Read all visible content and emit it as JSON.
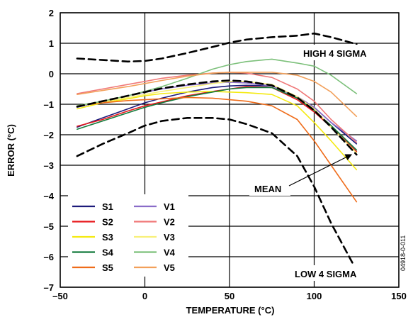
{
  "chart_data": {
    "type": "line",
    "xlabel": "TEMPERATURE (°C)",
    "ylabel": "ERROR (°C)",
    "xlim": [
      -50,
      150
    ],
    "ylim": [
      -7,
      2
    ],
    "xticks": [
      -50,
      0,
      50,
      100,
      150
    ],
    "yticks": [
      2,
      1,
      0,
      -1,
      -2,
      -3,
      -4,
      -5,
      -6,
      -7
    ],
    "xtick_labels": [
      "–50",
      "0",
      "50",
      "100",
      "150"
    ],
    "ytick_labels": [
      "2",
      "1",
      "0",
      "–1",
      "–2",
      "–3",
      "–4",
      "–5",
      "–6",
      "–7"
    ],
    "grid": true,
    "legend_position": "bottom-left",
    "x": [
      -40,
      -25,
      -10,
      0,
      10,
      25,
      40,
      50,
      60,
      75,
      90,
      100,
      110,
      125
    ],
    "series": [
      {
        "name": "S1",
        "color": "#1c1a7a",
        "values": [
          -1.75,
          -1.45,
          -1.15,
          -0.95,
          -0.8,
          -0.6,
          -0.45,
          -0.4,
          -0.38,
          -0.4,
          -0.75,
          -1.1,
          -1.6,
          -2.3
        ]
      },
      {
        "name": "S2",
        "color": "#e8191c",
        "values": [
          -1.72,
          -1.5,
          -1.22,
          -1.05,
          -0.92,
          -0.72,
          -0.58,
          -0.5,
          -0.42,
          -0.45,
          -0.85,
          -1.25,
          -1.75,
          -2.55
        ]
      },
      {
        "name": "S3",
        "color": "#f4ea10",
        "values": [
          -1.15,
          -0.95,
          -0.82,
          -0.72,
          -0.65,
          -0.6,
          -0.58,
          -0.6,
          -0.62,
          -0.68,
          -1.05,
          -1.6,
          -2.2,
          -3.15
        ]
      },
      {
        "name": "S4",
        "color": "#137a3c",
        "values": [
          -1.82,
          -1.55,
          -1.28,
          -1.1,
          -0.95,
          -0.75,
          -0.6,
          -0.5,
          -0.45,
          -0.45,
          -0.8,
          -1.2,
          -1.7,
          -2.5
        ]
      },
      {
        "name": "S5",
        "color": "#ef6c1a",
        "values": [
          -1.05,
          -0.95,
          -0.88,
          -0.85,
          -0.82,
          -0.78,
          -0.8,
          -0.85,
          -0.9,
          -1.05,
          -1.5,
          -2.2,
          -3.0,
          -4.2
        ]
      },
      {
        "name": "V1",
        "color": "#8a6cc8",
        "values": [
          -1.1,
          -0.9,
          -0.72,
          -0.6,
          -0.5,
          -0.38,
          -0.3,
          -0.28,
          -0.3,
          -0.4,
          -0.75,
          -1.1,
          -1.6,
          -2.2
        ]
      },
      {
        "name": "V2",
        "color": "#f07878",
        "values": [
          -0.65,
          -0.5,
          -0.35,
          -0.25,
          -0.15,
          -0.05,
          0.02,
          0.05,
          0.02,
          -0.12,
          -0.5,
          -0.9,
          -1.5,
          -2.25
        ]
      },
      {
        "name": "V3",
        "color": "#f8f07a",
        "values": [
          -1.05,
          -0.92,
          -0.78,
          -0.68,
          -0.58,
          -0.45,
          -0.32,
          -0.25,
          -0.25,
          -0.35,
          -0.75,
          -1.15,
          -1.75,
          -2.6
        ]
      },
      {
        "name": "V4",
        "color": "#7cc07a",
        "values": [
          -1.05,
          -0.9,
          -0.72,
          -0.58,
          -0.42,
          -0.15,
          0.15,
          0.3,
          0.4,
          0.48,
          0.35,
          0.25,
          -0.05,
          -0.65
        ]
      },
      {
        "name": "V5",
        "color": "#f2a05a",
        "values": [
          -0.68,
          -0.55,
          -0.42,
          -0.32,
          -0.22,
          -0.08,
          0.02,
          0.05,
          0.05,
          0.05,
          -0.05,
          -0.25,
          -0.6,
          -1.4
        ]
      },
      {
        "name": "MEAN",
        "color": "#000000",
        "dashed": true,
        "values": [
          -1.08,
          -0.9,
          -0.72,
          -0.6,
          -0.48,
          -0.35,
          -0.25,
          -0.22,
          -0.25,
          -0.38,
          -0.78,
          -1.2,
          -1.75,
          -2.65
        ]
      },
      {
        "name": "HIGH 4 SIGMA",
        "color": "#000000",
        "dashed": true,
        "values": [
          0.5,
          0.45,
          0.4,
          0.42,
          0.5,
          0.68,
          0.88,
          1.02,
          1.12,
          1.2,
          1.25,
          1.32,
          1.2,
          0.97
        ]
      },
      {
        "name": "LOW 4 SIGMA",
        "color": "#000000",
        "dashed": true,
        "values": [
          -2.7,
          -2.3,
          -1.95,
          -1.7,
          -1.55,
          -1.45,
          -1.45,
          -1.5,
          -1.65,
          -1.95,
          -2.7,
          -3.7,
          -4.9,
          -6.45
        ]
      }
    ],
    "legend": {
      "col1": [
        "S1",
        "S2",
        "S3",
        "S4",
        "S5"
      ],
      "col2": [
        "V1",
        "V2",
        "V3",
        "V4",
        "V5"
      ]
    },
    "annotations": {
      "high": "HIGH 4 SIGMA",
      "low": "LOW 4 SIGMA",
      "mean": "MEAN",
      "fignum": "04918-0-011"
    }
  }
}
